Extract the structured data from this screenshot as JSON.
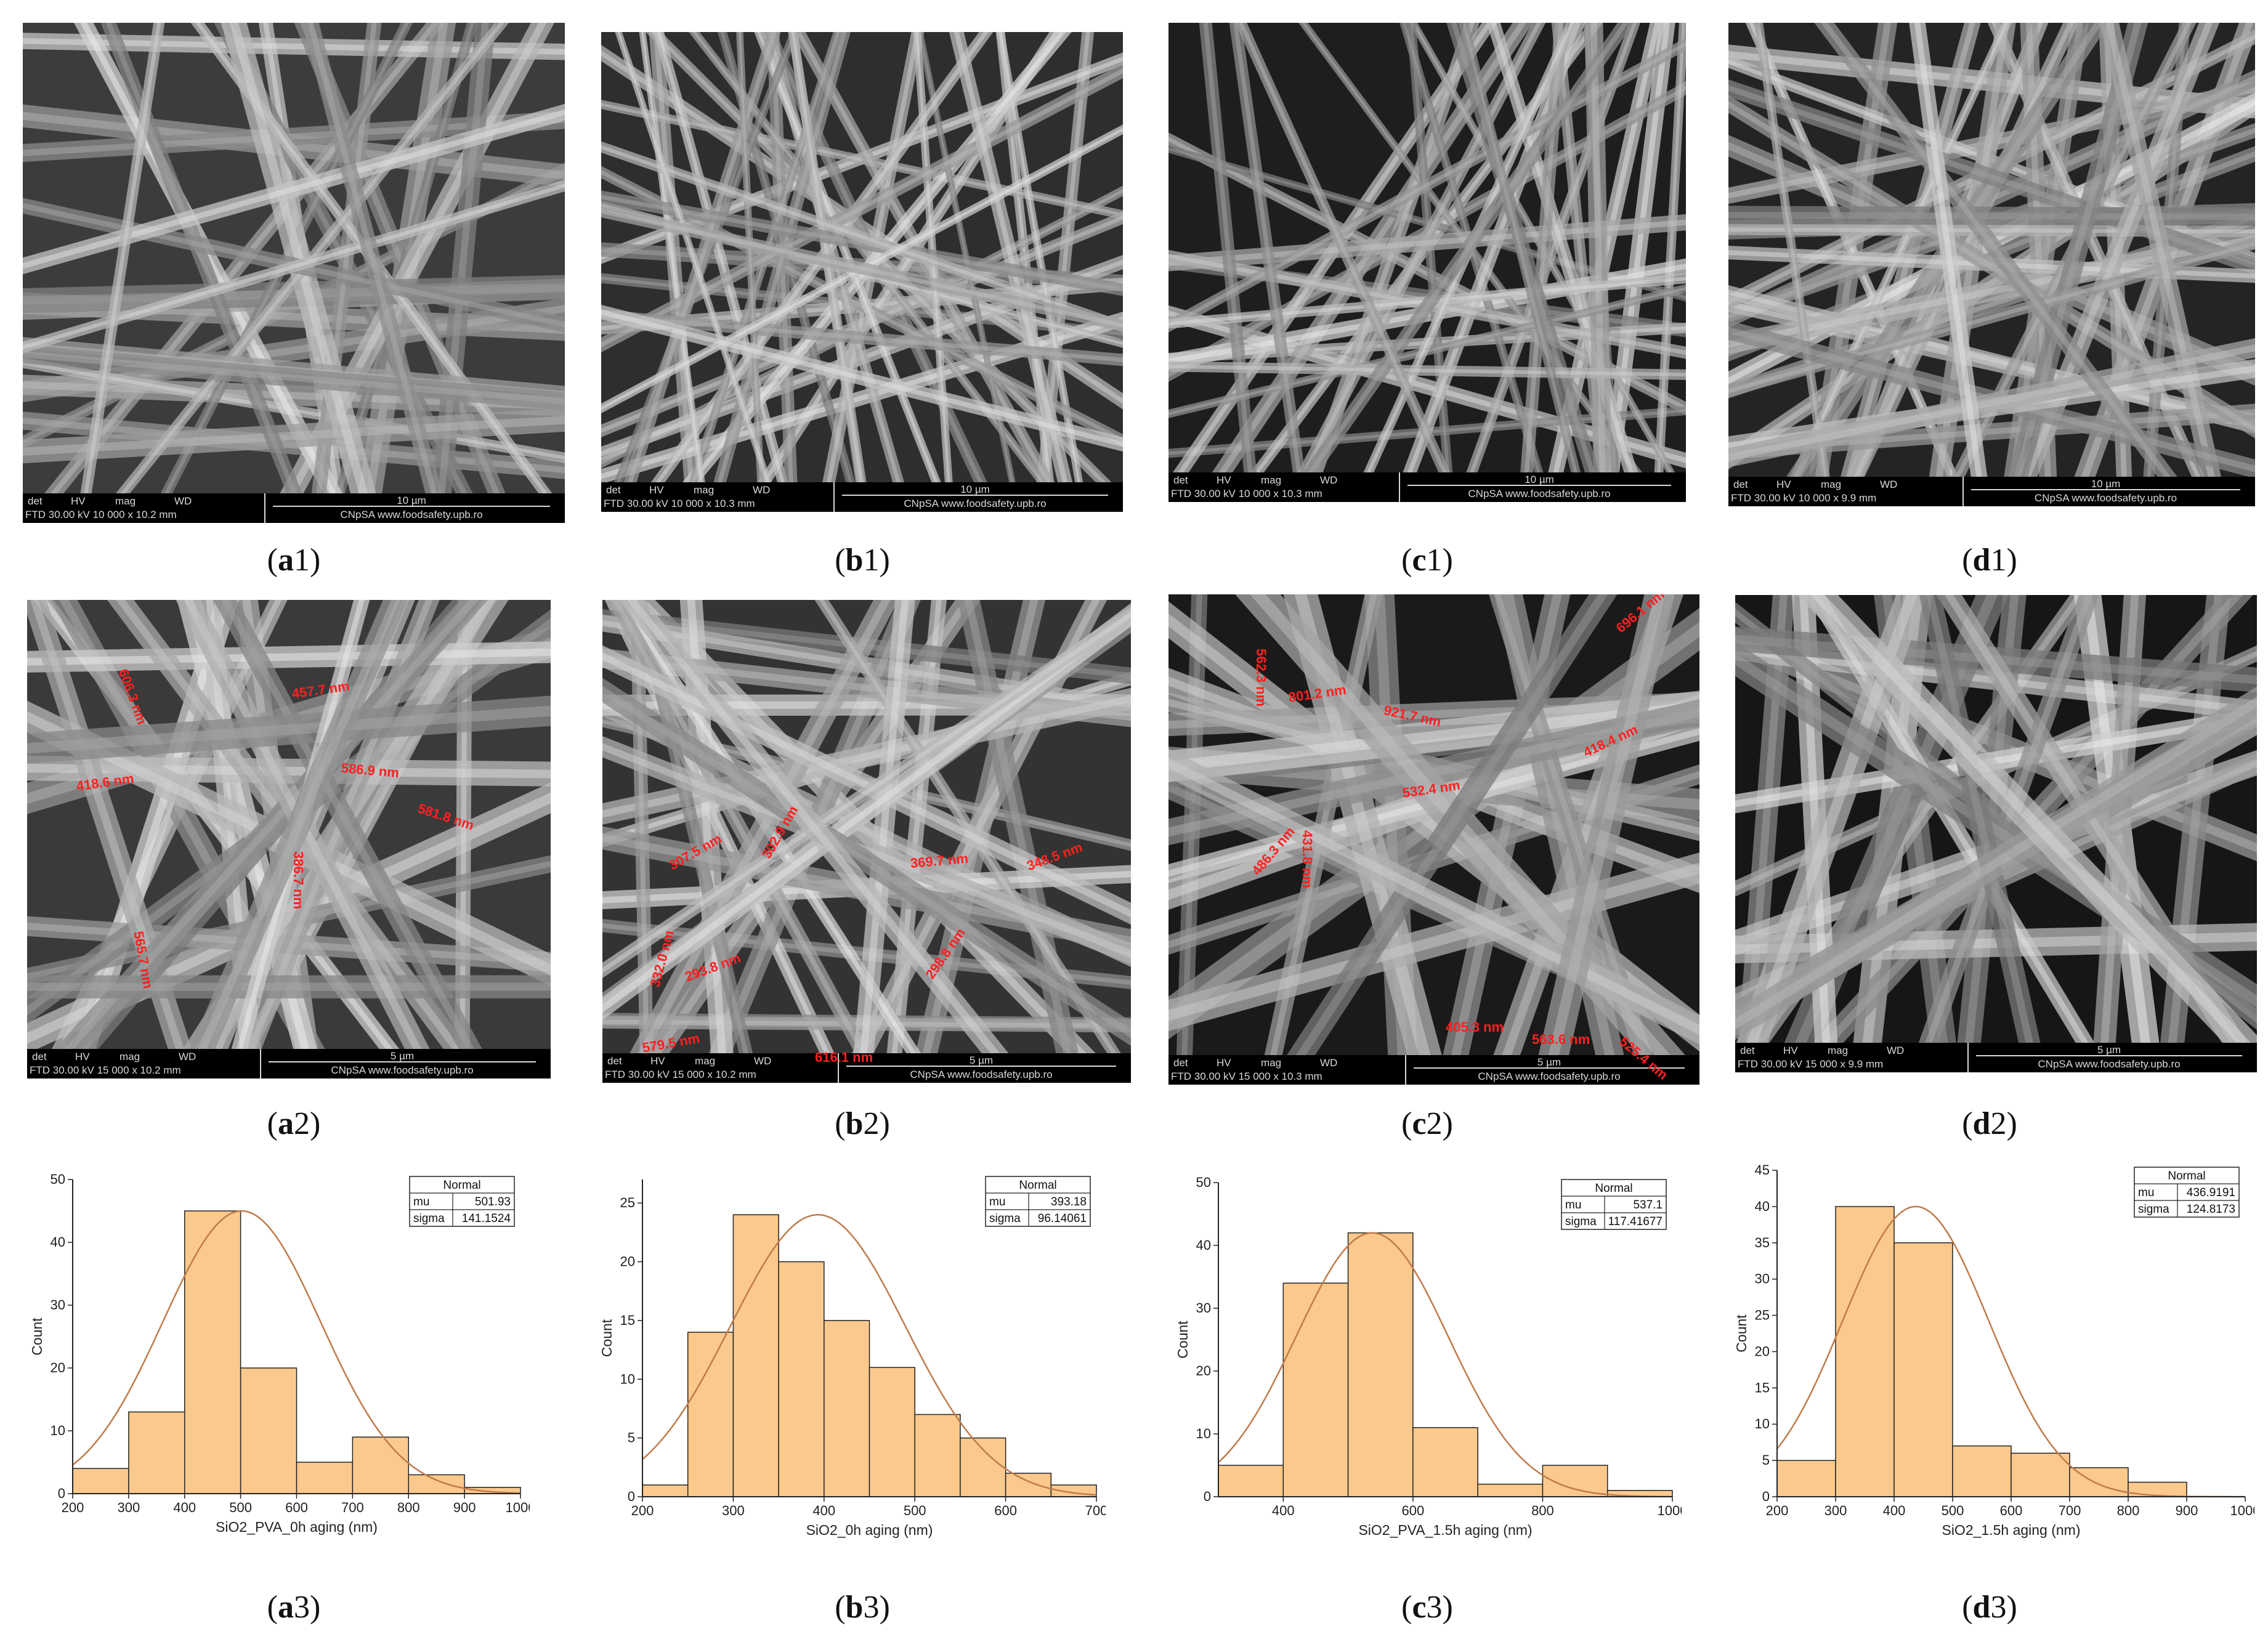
{
  "sem_bar": {
    "det": "det",
    "hv": "HV",
    "mag": "mag",
    "wd": "WD",
    "url": "CNpSA www.foodsafety.upb.ro"
  },
  "panels": {
    "a1": {
      "caption_letter": "a",
      "caption_num": "1",
      "info": "FTD 30.00 kV 10 000 x 10.2 mm",
      "scale": "10 µm"
    },
    "b1": {
      "caption_letter": "b",
      "caption_num": "1",
      "info": "FTD 30.00 kV 10 000 x 10.3 mm",
      "scale": "10 µm"
    },
    "c1": {
      "caption_letter": "c",
      "caption_num": "1",
      "info": "FTD 30.00 kV 10 000 x 10.3 mm",
      "scale": "10 µm"
    },
    "d1": {
      "caption_letter": "d",
      "caption_num": "1",
      "info": "FTD 30.00 kV 10 000 x 9.9 mm",
      "scale": "10 µm"
    },
    "a2": {
      "caption_letter": "a",
      "caption_num": "2",
      "info": "FTD 30.00 kV 15 000 x 10.2 mm",
      "scale": "5 µm",
      "measurements": [
        "606.3 nm",
        "457.7 nm",
        "418.6 nm",
        "586.9 nm",
        "581.8 nm",
        "386.7 nm",
        "565.7 nm"
      ]
    },
    "b2": {
      "caption_letter": "b",
      "caption_num": "2",
      "info": "FTD 30.00 kV 15 000 x 10.2 mm",
      "scale": "5 µm",
      "measurements": [
        "307.5 nm",
        "369.7 nm",
        "348.5 nm",
        "302.9 nm",
        "332.0 nm",
        "293.8 nm",
        "298.8 nm",
        "579.5 nm",
        "616.1 nm"
      ]
    },
    "c2": {
      "caption_letter": "c",
      "caption_num": "2",
      "info": "FTD 30.00 kV 15 000 x 10.3 mm",
      "scale": "5 µm",
      "measurements": [
        "562.3 nm",
        "696.1 nm",
        "801.2 nm",
        "921.7 nm",
        "431.8 nm",
        "532.4 nm",
        "418.4 nm",
        "486.3 nm",
        "405.3 nm",
        "563.6 nm",
        "525.4 nm"
      ]
    },
    "d2": {
      "caption_letter": "d",
      "caption_num": "2",
      "info": "FTD 30.00 kV 15 000 x 9.9 mm",
      "scale": "5 µm"
    }
  },
  "captions3": {
    "a3": {
      "letter": "a",
      "num": "3"
    },
    "b3": {
      "letter": "b",
      "num": "3"
    },
    "c3": {
      "letter": "c",
      "num": "3"
    },
    "d3": {
      "letter": "d",
      "num": "3"
    }
  },
  "chart_data": [
    {
      "id": "a3",
      "type": "bar",
      "xlabel": "SiO2_PVA_0h aging (nm)",
      "ylabel": "Count",
      "xlim": [
        200,
        1000
      ],
      "ylim": [
        0,
        50
      ],
      "xticks": [
        200,
        300,
        400,
        500,
        600,
        700,
        800,
        900,
        1000
      ],
      "yticks": [
        0,
        10,
        20,
        30,
        40,
        50
      ],
      "bin_width": 100,
      "bins": [
        200,
        300,
        400,
        500,
        600,
        700,
        800,
        900
      ],
      "values": [
        4,
        13,
        45,
        20,
        5,
        9,
        3,
        1
      ],
      "fit": {
        "mu": 501.93,
        "sigma": 141.1524,
        "peak": 45
      },
      "legend": {
        "title": "Normal",
        "mu_label": "mu",
        "mu": "501.93",
        "sigma_label": "sigma",
        "sigma": "141.1524"
      }
    },
    {
      "id": "b3",
      "type": "bar",
      "xlabel": "SiO2_0h aging (nm)",
      "ylabel": "Count",
      "xlim": [
        200,
        700
      ],
      "ylim": [
        0,
        27
      ],
      "xticks": [
        200,
        300,
        400,
        500,
        600,
        700
      ],
      "yticks": [
        0,
        5,
        10,
        15,
        20,
        25
      ],
      "bin_width": 50,
      "bins": [
        200,
        250,
        300,
        350,
        400,
        450,
        500,
        550,
        600,
        650
      ],
      "values": [
        1,
        14,
        24,
        20,
        15,
        11,
        7,
        5,
        2,
        1
      ],
      "fit": {
        "mu": 393.18,
        "sigma": 96.14061,
        "peak": 24
      },
      "legend": {
        "title": "Normal",
        "mu_label": "mu",
        "mu": "393.18",
        "sigma_label": "sigma",
        "sigma": "96.14061"
      }
    },
    {
      "id": "c3",
      "type": "bar",
      "xlabel": "SiO2_PVA_1.5h aging (nm)",
      "ylabel": "Count",
      "xlim": [
        300,
        1000
      ],
      "ylim": [
        0,
        50
      ],
      "xticks": [
        400,
        600,
        800,
        1000
      ],
      "yticks": [
        0,
        10,
        20,
        30,
        40,
        50
      ],
      "bin_width": 100,
      "bins": [
        300,
        400,
        500,
        600,
        700,
        800,
        900
      ],
      "values": [
        5,
        34,
        42,
        11,
        2,
        5,
        1
      ],
      "fit": {
        "mu": 537.1,
        "sigma": 117.41677,
        "peak": 42
      },
      "legend": {
        "title": "Normal",
        "mu_label": "mu",
        "mu": "537.1",
        "sigma_label": "sigma",
        "sigma": "117.41677"
      }
    },
    {
      "id": "d3",
      "type": "bar",
      "xlabel": "SiO2_1.5h aging (nm)",
      "ylabel": "Count",
      "xlim": [
        200,
        1000
      ],
      "ylim": [
        0,
        45
      ],
      "xticks": [
        200,
        300,
        400,
        500,
        600,
        700,
        800,
        900,
        1000
      ],
      "yticks": [
        0,
        5,
        10,
        15,
        20,
        25,
        30,
        35,
        40,
        45
      ],
      "bin_width": 100,
      "bins": [
        200,
        300,
        400,
        500,
        600,
        700,
        800
      ],
      "values": [
        5,
        40,
        35,
        7,
        6,
        4,
        2
      ],
      "fit": {
        "mu": 436.9191,
        "sigma": 124.8173,
        "peak": 40
      },
      "legend": {
        "title": "Normal",
        "mu_label": "mu",
        "mu": "436.9191",
        "sigma_label": "sigma",
        "sigma": "124.8173"
      }
    }
  ]
}
